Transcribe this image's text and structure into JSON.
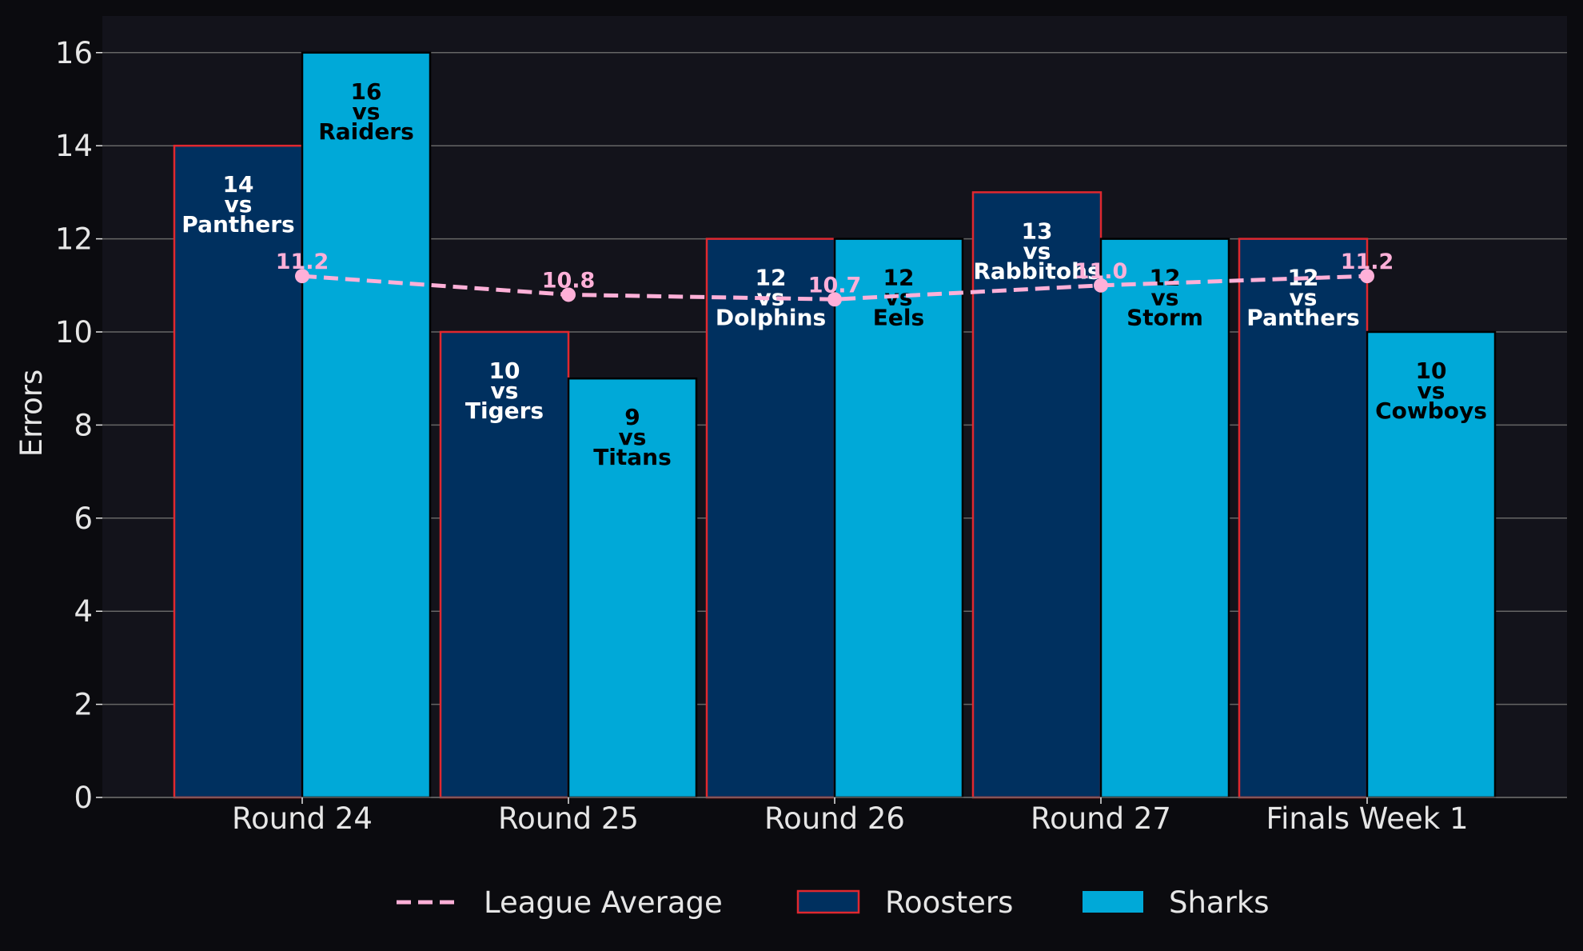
{
  "chart_data": {
    "type": "bar",
    "ylabel": "Errors",
    "ylim": [
      0,
      16.8
    ],
    "yticks": [
      0,
      2,
      4,
      6,
      8,
      10,
      12,
      14,
      16
    ],
    "grid": "horizontal",
    "legend_position": "bottom-center",
    "categories": [
      "Round 24",
      "Round 25",
      "Round 26",
      "Round 27",
      "Finals Week 1"
    ],
    "series": [
      {
        "name": "Roosters",
        "color": "#00305f",
        "edge_color": "#e0282f",
        "text_color": "#ffffff",
        "values": [
          14,
          10,
          12,
          13,
          12
        ],
        "labels": [
          "14\nvs\nPanthers",
          "10\nvs\nTigers",
          "12\nvs\nDolphins",
          "13\nvs\nRabbitohs",
          "12\nvs\nPanthers"
        ]
      },
      {
        "name": "Sharks",
        "color": "#00a9d8",
        "edge_color": "#000000",
        "text_color": "#000000",
        "values": [
          16,
          9,
          12,
          12,
          10
        ],
        "labels": [
          "16\nvs\nRaiders",
          "9\nvs\nTitans",
          "12\nvs\nEels",
          "12\nvs\nStorm",
          "10\nvs\nCowboys"
        ]
      }
    ],
    "line": {
      "name": "League Average",
      "color": "#ffb0d8",
      "style": "dashed",
      "values": [
        11.2,
        10.8,
        10.7,
        11.0,
        11.2
      ],
      "labels": [
        "11.2",
        "10.8",
        "10.7",
        "11.0",
        "11.2"
      ]
    },
    "colors": {
      "background": "#0b0b0f",
      "plot_background": "#13131b",
      "grid": "#666666",
      "text": "#e6e6e6"
    }
  }
}
